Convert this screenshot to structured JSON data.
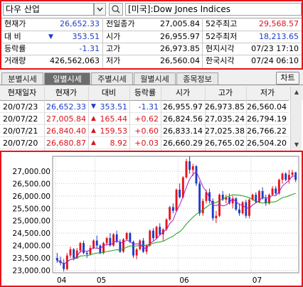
{
  "search": {
    "stock_name": "다우 산업",
    "dropdown_icon": "chevron-down-icon",
    "search_icon": "magnifier-icon",
    "index_title": "[미국]:Dow Jones Indices"
  },
  "quote": {
    "current_label": "현재가",
    "current_value": "26,652.33",
    "prev_close_label": "전일종가",
    "prev_close_value": "27,005.84",
    "high52_label": "52주최고",
    "high52_value": "29,568.57",
    "change_label": "대 비",
    "change_value": "353.51",
    "open_label": "시가",
    "open_value": "26,955.97",
    "low52_label": "52주최저",
    "low52_value": "18,213.65",
    "rate_label": "등락률",
    "rate_value": "-1.31",
    "high_label": "고가",
    "high_value": "26,973.85",
    "local_time_label": "현지시각",
    "local_time_value": "07/23 17:10",
    "volume_label": "거래량",
    "volume_value": "426,562,063",
    "low_label": "저가",
    "low_value": "26,560.04",
    "korea_time_label": "한국시각",
    "korea_time_value": "07/24 06:10"
  },
  "tabs": [
    "분별시세",
    "일별시세",
    "주별시세",
    "월별시세",
    "종목정보"
  ],
  "chart_button": "차트",
  "daily_table": {
    "headers": [
      "현재일자",
      "현재가",
      "대비",
      "등락률",
      "시가",
      "고가",
      "저가"
    ],
    "rows": [
      {
        "date": "20/07/23",
        "price": "26,652.33",
        "dir": "down",
        "change": "353.51",
        "rate": "-1.31",
        "open": "26,955.97",
        "high": "26,973.85",
        "low": "26,560.04"
      },
      {
        "date": "20/07/22",
        "price": "27,005.84",
        "dir": "up",
        "change": "165.44",
        "rate": "+0.62",
        "open": "26,824.56",
        "high": "27,035.24",
        "low": "26,794.19"
      },
      {
        "date": "20/07/21",
        "price": "26,840.40",
        "dir": "up",
        "change": "159.53",
        "rate": "+0.60",
        "open": "26,833.14",
        "high": "27,025.38",
        "low": "26,766.22"
      },
      {
        "date": "20/07/20",
        "price": "26,680.87",
        "dir": "up",
        "change": "8.92",
        "rate": "+0.03",
        "open": "26,660.29",
        "high": "26,765.02",
        "low": "26,504.20"
      }
    ]
  },
  "chart_data": {
    "type": "candlestick",
    "ylim": [
      22900,
      27600
    ],
    "y_ticks": [
      "27,000.00",
      "26,500.00",
      "26,000.00",
      "25,500.00",
      "25,000.00",
      "24,500.00",
      "24,000.00",
      "23,500.00",
      "23,000.00"
    ],
    "x_ticks": [
      "04",
      "05",
      "06",
      "07"
    ],
    "colors": {
      "up": "#e8141c",
      "down": "#1c3cc8",
      "ma5": "#a020c8",
      "ma20": "#18a018"
    },
    "candles": [
      [
        23500,
        23700,
        23300,
        23400
      ],
      [
        23400,
        23550,
        23200,
        23300
      ],
      [
        23300,
        23450,
        22950,
        23050
      ],
      [
        23050,
        23700,
        23000,
        23600
      ],
      [
        23600,
        23950,
        23500,
        23850
      ],
      [
        23850,
        23900,
        23400,
        23500
      ],
      [
        23500,
        23900,
        23450,
        23800
      ],
      [
        23800,
        24150,
        23700,
        24100
      ],
      [
        24100,
        24200,
        23650,
        23700
      ],
      [
        23700,
        23800,
        23500,
        23650
      ],
      [
        23650,
        24000,
        23600,
        23900
      ],
      [
        23900,
        24250,
        23850,
        24200
      ],
      [
        24200,
        24400,
        23900,
        24000
      ],
      [
        24000,
        24050,
        23650,
        23700
      ],
      [
        23700,
        24150,
        23650,
        24100
      ],
      [
        24100,
        24350,
        24000,
        24300
      ],
      [
        24300,
        24500,
        23950,
        24000
      ],
      [
        24000,
        24500,
        23950,
        24450
      ],
      [
        24450,
        24600,
        24100,
        24150
      ],
      [
        24150,
        24250,
        23700,
        23750
      ],
      [
        23750,
        24300,
        23700,
        24250
      ],
      [
        24250,
        24550,
        24200,
        24500
      ],
      [
        24500,
        24550,
        24100,
        24150
      ],
      [
        24150,
        24200,
        23500,
        23600
      ],
      [
        23600,
        23900,
        23450,
        23850
      ],
      [
        23850,
        24250,
        23800,
        24200
      ],
      [
        24200,
        24300,
        23700,
        23750
      ],
      [
        23750,
        24050,
        23650,
        24000
      ],
      [
        24000,
        24650,
        23950,
        24600
      ],
      [
        24600,
        24700,
        24200,
        24300
      ],
      [
        24300,
        24800,
        24250,
        24750
      ],
      [
        24750,
        24900,
        24400,
        24450
      ],
      [
        24450,
        24700,
        24200,
        24650
      ],
      [
        24650,
        25100,
        24600,
        25050
      ],
      [
        25050,
        25600,
        25000,
        25550
      ],
      [
        25550,
        25700,
        25300,
        25400
      ],
      [
        25400,
        26300,
        25350,
        26250
      ],
      [
        26250,
        26500,
        25900,
        25950
      ],
      [
        25950,
        26800,
        25900,
        26750
      ],
      [
        26750,
        27500,
        26700,
        27400
      ],
      [
        27400,
        27600,
        26900,
        27050
      ],
      [
        27050,
        27300,
        26800,
        27200
      ],
      [
        27200,
        27250,
        26400,
        26500
      ],
      [
        26500,
        26600,
        25200,
        25300
      ],
      [
        25300,
        25900,
        25200,
        25800
      ],
      [
        25800,
        26250,
        25700,
        26150
      ],
      [
        26150,
        26300,
        25700,
        25800
      ],
      [
        25800,
        25900,
        25000,
        25100
      ],
      [
        25100,
        25400,
        24900,
        25200
      ],
      [
        25200,
        26100,
        25150,
        26050
      ],
      [
        26050,
        26200,
        25800,
        25850
      ],
      [
        25850,
        26050,
        25700,
        25950
      ],
      [
        25950,
        26100,
        25650,
        25700
      ],
      [
        25700,
        26000,
        25500,
        25900
      ],
      [
        25900,
        25950,
        25400,
        25450
      ],
      [
        25450,
        25700,
        25200,
        25300
      ],
      [
        25300,
        25800,
        25250,
        25750
      ],
      [
        25750,
        25850,
        25100,
        25200
      ],
      [
        25200,
        25900,
        25100,
        25850
      ],
      [
        25850,
        26100,
        25800,
        26050
      ],
      [
        26050,
        26150,
        25700,
        25750
      ],
      [
        25750,
        26250,
        25700,
        26200
      ],
      [
        26200,
        26350,
        25850,
        25900
      ],
      [
        25900,
        26050,
        25600,
        25700
      ],
      [
        25700,
        26100,
        25650,
        26050
      ],
      [
        26050,
        26400,
        26000,
        26300
      ],
      [
        26300,
        26400,
        26050,
        26100
      ],
      [
        26100,
        26700,
        26050,
        26650
      ],
      [
        26650,
        26950,
        26500,
        26900
      ],
      [
        26900,
        26950,
        26600,
        26650
      ],
      [
        26650,
        27050,
        26500,
        26850
      ],
      [
        26850,
        27050,
        26750,
        26950
      ],
      [
        26950,
        26970,
        26560,
        26650
      ]
    ]
  }
}
